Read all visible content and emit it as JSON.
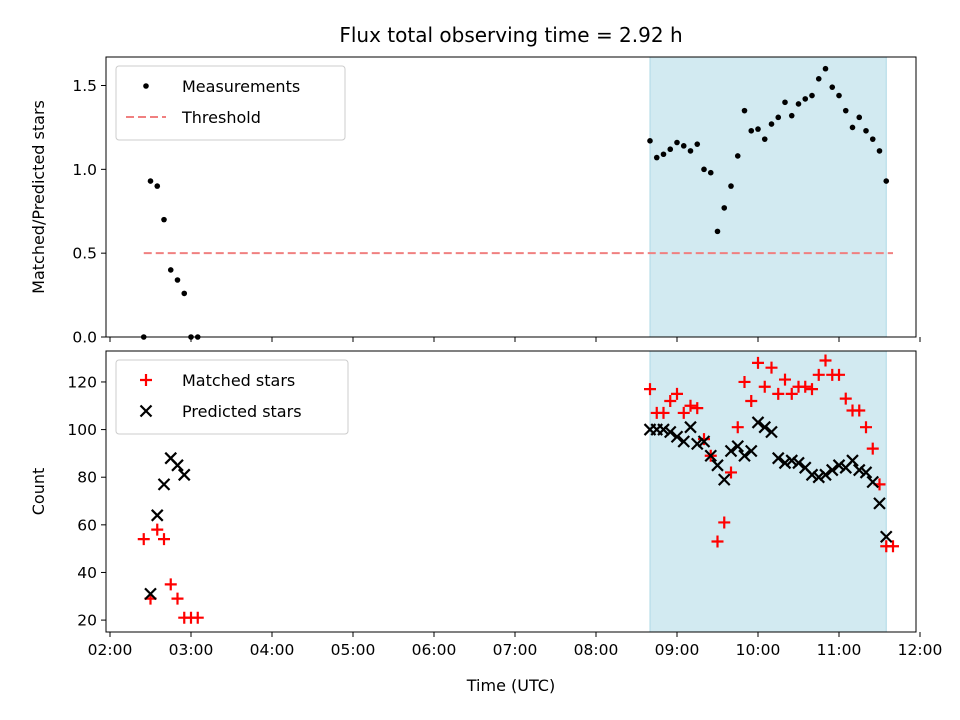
{
  "chart_data": {
    "title": "Flux total observing time = 2.92 h",
    "xlabel": "Time (UTC)",
    "xlim": [
      "02:00",
      "12:00"
    ],
    "x_ticks": [
      "02:00",
      "03:00",
      "04:00",
      "05:00",
      "06:00",
      "07:00",
      "08:00",
      "09:00",
      "10:00",
      "11:00",
      "12:00"
    ],
    "shaded_region": {
      "start": "08:40",
      "end": "11:35",
      "color": "#add8e6"
    },
    "panels": [
      {
        "type": "scatter",
        "ylabel": "Matched/Predicted stars",
        "ylim": [
          0,
          1.67
        ],
        "y_ticks": [
          "0.0",
          "0.5",
          "1.0",
          "1.5"
        ],
        "legend": "top-left",
        "series": [
          {
            "name": "Measurements",
            "marker": "dot",
            "color": "#000000",
            "x": [
              "02:25",
              "02:30",
              "02:35",
              "02:40",
              "02:45",
              "02:50",
              "02:55",
              "03:00",
              "03:05",
              "08:40",
              "08:45",
              "08:50",
              "08:55",
              "09:00",
              "09:05",
              "09:10",
              "09:15",
              "09:20",
              "09:25",
              "09:30",
              "09:35",
              "09:40",
              "09:45",
              "09:50",
              "09:55",
              "10:00",
              "10:05",
              "10:10",
              "10:15",
              "10:20",
              "10:25",
              "10:30",
              "10:35",
              "10:40",
              "10:45",
              "10:50",
              "10:55",
              "11:00",
              "11:05",
              "11:10",
              "11:15",
              "11:20",
              "11:25",
              "11:30",
              "11:35"
            ],
            "y": [
              0.0,
              0.93,
              0.9,
              0.7,
              0.4,
              0.34,
              0.26,
              0.0,
              0.0,
              1.17,
              1.07,
              1.09,
              1.12,
              1.16,
              1.14,
              1.11,
              1.15,
              1.0,
              0.98,
              0.63,
              0.77,
              0.9,
              1.08,
              1.35,
              1.23,
              1.24,
              1.18,
              1.27,
              1.31,
              1.4,
              1.32,
              1.39,
              1.42,
              1.44,
              1.54,
              1.6,
              1.49,
              1.44,
              1.35,
              1.25,
              1.31,
              1.23,
              1.18,
              1.11,
              0.93
            ]
          },
          {
            "name": "Threshold",
            "style": "dashed",
            "color": "#f08080",
            "x": [
              "02:25",
              "11:40"
            ],
            "y": [
              0.5,
              0.5
            ]
          }
        ]
      },
      {
        "type": "scatter",
        "ylabel": "Count",
        "ylim": [
          15,
          133
        ],
        "y_ticks": [
          "20",
          "40",
          "60",
          "80",
          "100",
          "120"
        ],
        "legend": "top-left",
        "series": [
          {
            "name": "Matched stars",
            "marker": "plus",
            "color": "#ff0000",
            "x": [
              "02:25",
              "02:30",
              "02:35",
              "02:40",
              "02:45",
              "02:50",
              "02:55",
              "03:00",
              "03:05",
              "08:40",
              "08:45",
              "08:50",
              "08:55",
              "09:00",
              "09:05",
              "09:10",
              "09:15",
              "09:20",
              "09:25",
              "09:30",
              "09:35",
              "09:40",
              "09:45",
              "09:50",
              "09:55",
              "10:00",
              "10:05",
              "10:10",
              "10:15",
              "10:20",
              "10:25",
              "10:30",
              "10:35",
              "10:40",
              "10:45",
              "10:50",
              "10:55",
              "11:00",
              "11:05",
              "11:10",
              "11:15",
              "11:20",
              "11:25",
              "11:30",
              "11:35",
              "11:40"
            ],
            "y": [
              54,
              29,
              58,
              54,
              35,
              29,
              21,
              21,
              21,
              117,
              107,
              107,
              112,
              115,
              107,
              110,
              109,
              96,
              89,
              53,
              61,
              82,
              101,
              120,
              112,
              128,
              118,
              126,
              115,
              121,
              115,
              118,
              118,
              117,
              123,
              129,
              123,
              123,
              113,
              108,
              108,
              101,
              92,
              77,
              51,
              51
            ]
          },
          {
            "name": "Predicted stars",
            "marker": "x",
            "color": "#000000",
            "x": [
              "02:30",
              "02:35",
              "02:40",
              "02:45",
              "02:50",
              "02:55",
              "08:40",
              "08:45",
              "08:50",
              "08:55",
              "09:00",
              "09:05",
              "09:10",
              "09:15",
              "09:20",
              "09:25",
              "09:30",
              "09:35",
              "09:40",
              "09:45",
              "09:50",
              "09:55",
              "10:00",
              "10:05",
              "10:10",
              "10:15",
              "10:20",
              "10:25",
              "10:30",
              "10:35",
              "10:40",
              "10:45",
              "10:50",
              "10:55",
              "11:00",
              "11:05",
              "11:10",
              "11:15",
              "11:20",
              "11:25",
              "11:30",
              "11:35"
            ],
            "y": [
              31,
              64,
              77,
              88,
              85,
              81,
              100,
              100,
              100,
              99,
              97,
              95,
              101,
              94,
              95,
              89,
              85,
              79,
              91,
              93,
              89,
              91,
              103,
              101,
              99,
              88,
              86,
              87,
              86,
              84,
              81,
              80,
              81,
              83,
              85,
              84,
              87,
              83,
              82,
              78,
              69,
              55
            ]
          }
        ]
      }
    ]
  }
}
